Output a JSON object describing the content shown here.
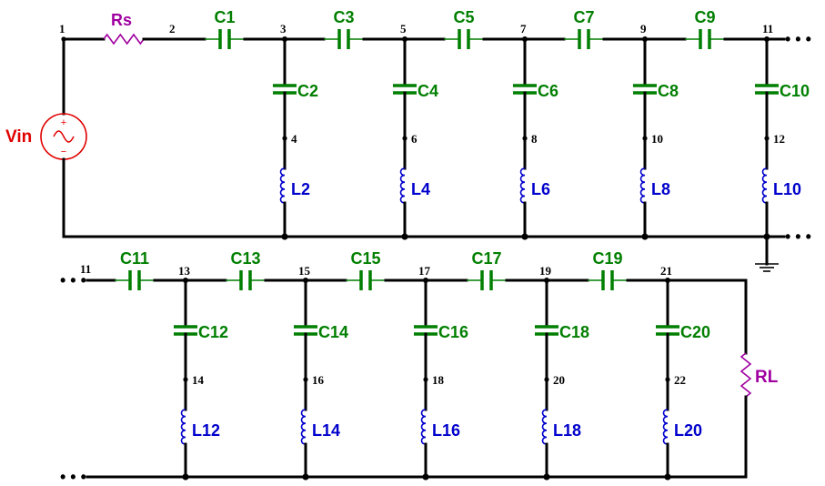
{
  "colors": {
    "wire": "#000000",
    "capacitor": "#007f00",
    "inductor": "#0000cc",
    "resistor": "#a000a0",
    "source": "#e00000"
  },
  "source": {
    "label": "Vin",
    "plus": "+",
    "minus": "−"
  },
  "rs": {
    "label": "Rs"
  },
  "rl": {
    "label": "RL"
  },
  "continuation": "• • •",
  "top_row": {
    "start_nodes": {
      "n1": "1",
      "n2": "2"
    },
    "end_node": "11",
    "series_caps": [
      "C1",
      "C3",
      "C5",
      "C7",
      "C9"
    ],
    "shunts": [
      {
        "node": "3",
        "cap": "C2",
        "mid_node": "4",
        "ind": "L2"
      },
      {
        "node": "5",
        "cap": "C4",
        "mid_node": "6",
        "ind": "L4"
      },
      {
        "node": "7",
        "cap": "C6",
        "mid_node": "8",
        "ind": "L6"
      },
      {
        "node": "9",
        "cap": "C8",
        "mid_node": "10",
        "ind": "L8"
      },
      {
        "node": "11",
        "cap": "C10",
        "mid_node": "12",
        "ind": "L10"
      }
    ]
  },
  "bottom_row": {
    "start_node": "11",
    "series_caps": [
      "C11",
      "C13",
      "C15",
      "C17",
      "C19"
    ],
    "shunts": [
      {
        "node": "13",
        "cap": "C12",
        "mid_node": "14",
        "ind": "L12"
      },
      {
        "node": "15",
        "cap": "C14",
        "mid_node": "16",
        "ind": "L14"
      },
      {
        "node": "17",
        "cap": "C16",
        "mid_node": "18",
        "ind": "L16"
      },
      {
        "node": "19",
        "cap": "C18",
        "mid_node": "20",
        "ind": "L18"
      },
      {
        "node": "21",
        "cap": "C20",
        "mid_node": "22",
        "ind": "L20"
      }
    ]
  }
}
